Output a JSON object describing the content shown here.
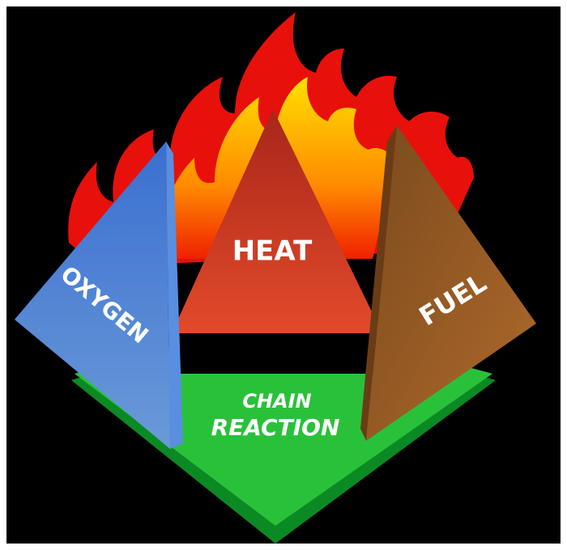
{
  "labels": {
    "oxygen": "OXYGEN",
    "heat": "HEAT",
    "fuel": "FUEL",
    "chain_reaction": [
      "CHAIN",
      "REACTION"
    ]
  }
}
